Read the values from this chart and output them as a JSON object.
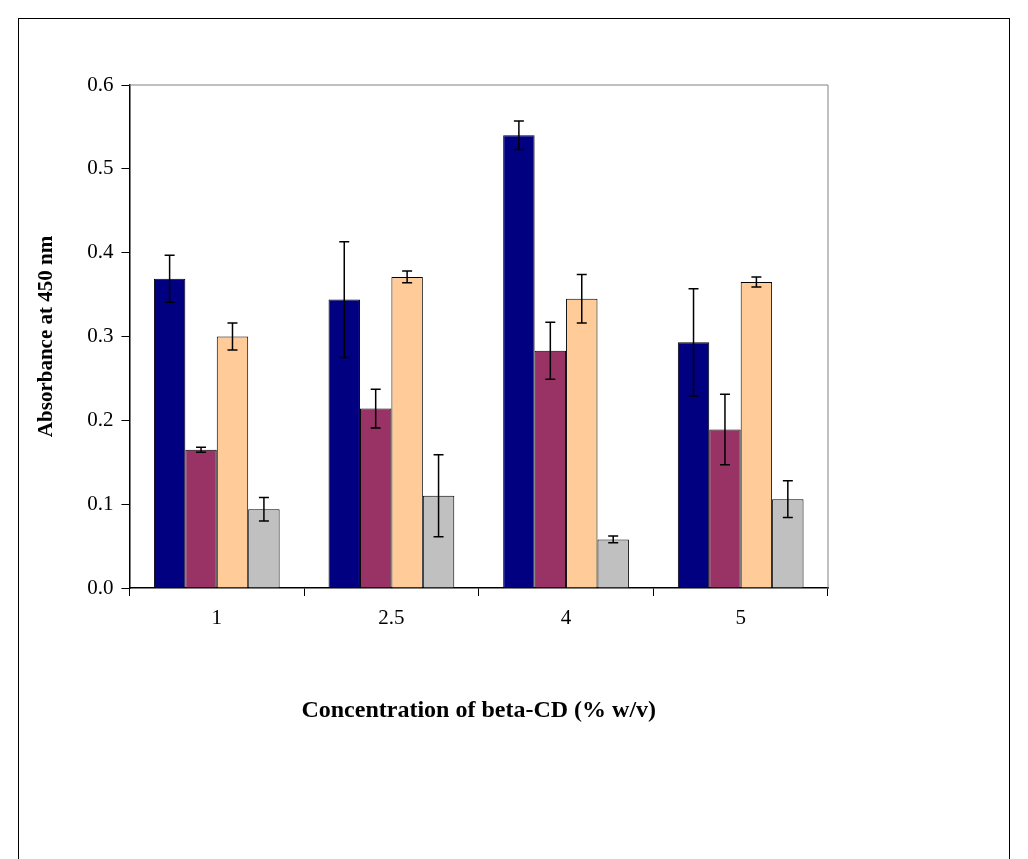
{
  "chart_data": {
    "type": "bar",
    "xlabel": "Concentration of beta-CD (% w/v)",
    "ylabel": "Absorbance at 450 nm",
    "categories": [
      "1",
      "2.5",
      "4",
      "5"
    ],
    "series": [
      {
        "color": "#000080",
        "values": [
          0.369,
          0.344,
          0.54,
          0.293
        ],
        "errors": [
          0.028,
          0.069,
          0.017,
          0.064
        ]
      },
      {
        "color": "#993366",
        "values": [
          0.165,
          0.214,
          0.283,
          0.189
        ],
        "errors": [
          0.003,
          0.023,
          0.034,
          0.042
        ]
      },
      {
        "color": "#ffcc99",
        "values": [
          0.3,
          0.371,
          0.345,
          0.365
        ],
        "errors": [
          0.016,
          0.007,
          0.029,
          0.006
        ]
      },
      {
        "color": "#c0c0c0",
        "values": [
          0.094,
          0.11,
          0.058,
          0.106
        ],
        "errors": [
          0.014,
          0.049,
          0.004,
          0.022
        ]
      }
    ],
    "ylim": [
      0,
      0.6
    ],
    "yticks": [
      {
        "value": 0,
        "label": "0.0"
      },
      0.1,
      0.2,
      0.3,
      0.4,
      0.5,
      0.6
    ],
    "grid": false,
    "legend": false
  }
}
